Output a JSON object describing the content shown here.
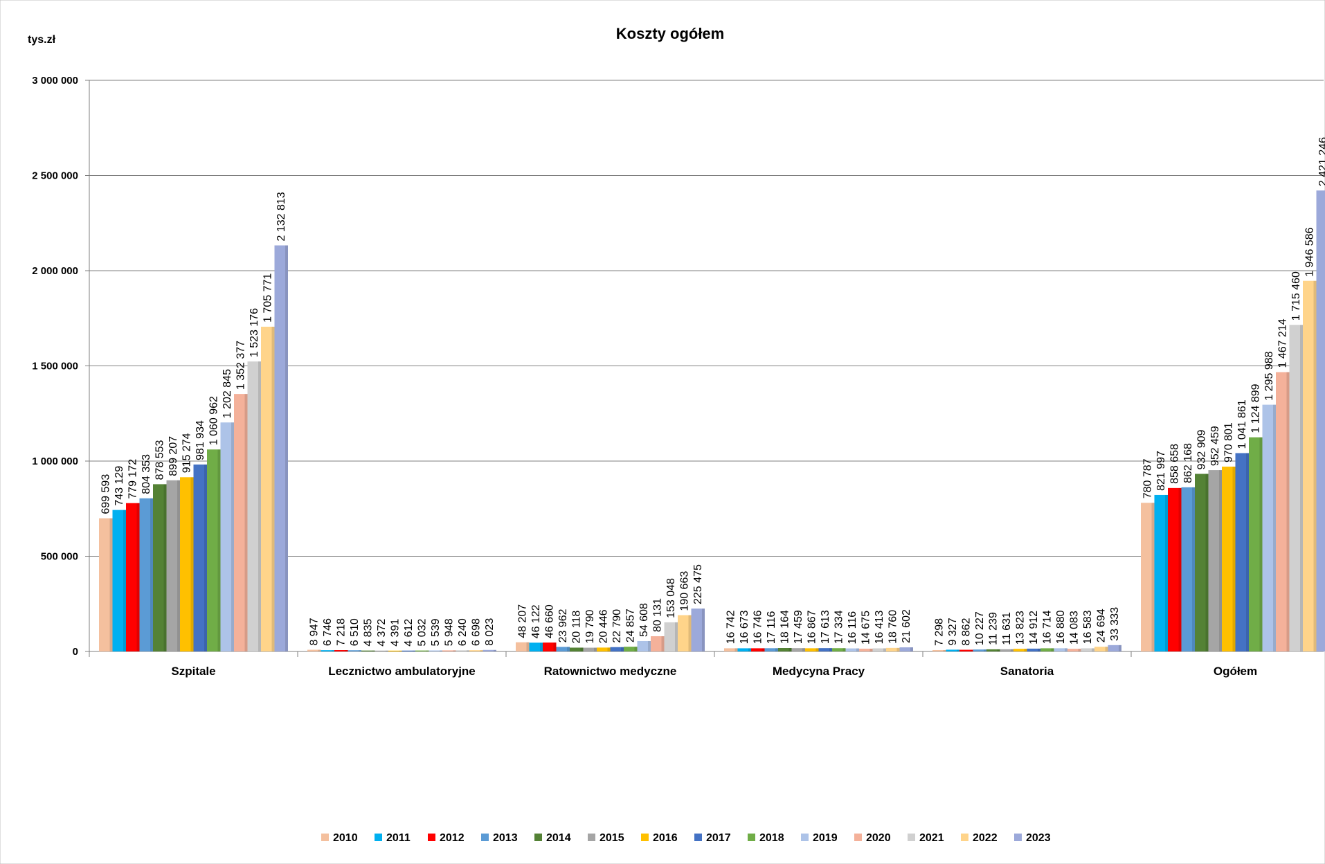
{
  "chart_data": {
    "type": "bar",
    "title": "Koszty ogółem",
    "unit_label": "tys.zł",
    "xlabel": "",
    "ylabel": "",
    "ylim": [
      0,
      3000000
    ],
    "y_ticks": [
      0,
      500000,
      1000000,
      1500000,
      2000000,
      2500000,
      3000000
    ],
    "y_tick_labels": [
      "0",
      "500 000",
      "1 000 000",
      "1 500 000",
      "2 000 000",
      "2 500 000",
      "3 000 000"
    ],
    "grid": true,
    "legend_position": "bottom",
    "categories": [
      "Szpitale",
      "Lecznictwo ambulatoryjne",
      "Ratownictwo medyczne",
      "Medycyna Pracy",
      "Sanatoria",
      "Ogółem"
    ],
    "series": [
      {
        "name": "2010",
        "color": "#F4C09E",
        "values": [
          699593,
          8947,
          48207,
          16742,
          7298,
          780787
        ],
        "labels": [
          "699 593",
          "8 947",
          "48 207",
          "16 742",
          "7 298",
          "780 787"
        ]
      },
      {
        "name": "2011",
        "color": "#00B0F0",
        "values": [
          743129,
          6746,
          46122,
          16673,
          9327,
          821997
        ],
        "labels": [
          "743 129",
          "6 746",
          "46 122",
          "16 673",
          "9 327",
          "821 997"
        ]
      },
      {
        "name": "2012",
        "color": "#FF0000",
        "values": [
          779172,
          7218,
          46660,
          16746,
          8862,
          858658
        ],
        "labels": [
          "779 172",
          "7 218",
          "46 660",
          "16 746",
          "8 862",
          "858 658"
        ]
      },
      {
        "name": "2013",
        "color": "#5B9BD5",
        "values": [
          804353,
          6510,
          23962,
          17116,
          10227,
          862168
        ],
        "labels": [
          "804 353",
          "6 510",
          "23 962",
          "17 116",
          "10 227",
          "862 168"
        ]
      },
      {
        "name": "2014",
        "color": "#548235",
        "values": [
          878553,
          4835,
          20118,
          18164,
          11239,
          932909
        ],
        "labels": [
          "878 553",
          "4 835",
          "20 118",
          "18 164",
          "11 239",
          "932 909"
        ]
      },
      {
        "name": "2015",
        "color": "#A5A5A5",
        "values": [
          899207,
          4372,
          19790,
          17459,
          11631,
          952459
        ],
        "labels": [
          "899 207",
          "4 372",
          "19 790",
          "17 459",
          "11 631",
          "952 459"
        ]
      },
      {
        "name": "2016",
        "color": "#FFC000",
        "values": [
          915274,
          4391,
          20446,
          16867,
          13823,
          970801
        ],
        "labels": [
          "915 274",
          "4 391",
          "20 446",
          "16 867",
          "13 823",
          "970 801"
        ]
      },
      {
        "name": "2017",
        "color": "#4472C4",
        "values": [
          981934,
          4612,
          22790,
          17613,
          14912,
          1041861
        ],
        "labels": [
          "981 934",
          "4 612",
          "22 790",
          "17 613",
          "14 912",
          "1 041 861"
        ]
      },
      {
        "name": "2018",
        "color": "#70AD47",
        "values": [
          1060962,
          5032,
          24857,
          17334,
          16714,
          1124899
        ],
        "labels": [
          "1 060 962",
          "5 032",
          "24 857",
          "17 334",
          "16 714",
          "1 124 899"
        ]
      },
      {
        "name": "2019",
        "color": "#ADC3E8",
        "values": [
          1202845,
          5539,
          54608,
          16116,
          16880,
          1295988
        ],
        "labels": [
          "1 202 845",
          "5 539",
          "54 608",
          "16 116",
          "16 880",
          "1 295 988"
        ]
      },
      {
        "name": "2020",
        "color": "#F4B19A",
        "values": [
          1352377,
          5948,
          80131,
          14675,
          14083,
          1467214
        ],
        "labels": [
          "1 352 377",
          "5 948",
          "80 131",
          "14 675",
          "14 083",
          "1 467 214"
        ]
      },
      {
        "name": "2021",
        "color": "#D0D0D0",
        "values": [
          1523176,
          6240,
          153048,
          16413,
          16583,
          1715460
        ],
        "labels": [
          "1 523 176",
          "6 240",
          "153 048",
          "16 413",
          "16 583",
          "1 715 460"
        ]
      },
      {
        "name": "2022",
        "color": "#FFD48A",
        "values": [
          1705771,
          6698,
          190663,
          18760,
          24694,
          1946586
        ],
        "labels": [
          "1 705 771",
          "6 698",
          "190 663",
          "18 760",
          "24 694",
          "1 946 586"
        ]
      },
      {
        "name": "2023",
        "color": "#9CA9DA",
        "values": [
          2132813,
          8023,
          225475,
          21602,
          33333,
          2421246
        ],
        "labels": [
          "2 132 813",
          "8 023",
          "225 475",
          "21 602",
          "33 333",
          "2 421 246"
        ]
      }
    ]
  }
}
